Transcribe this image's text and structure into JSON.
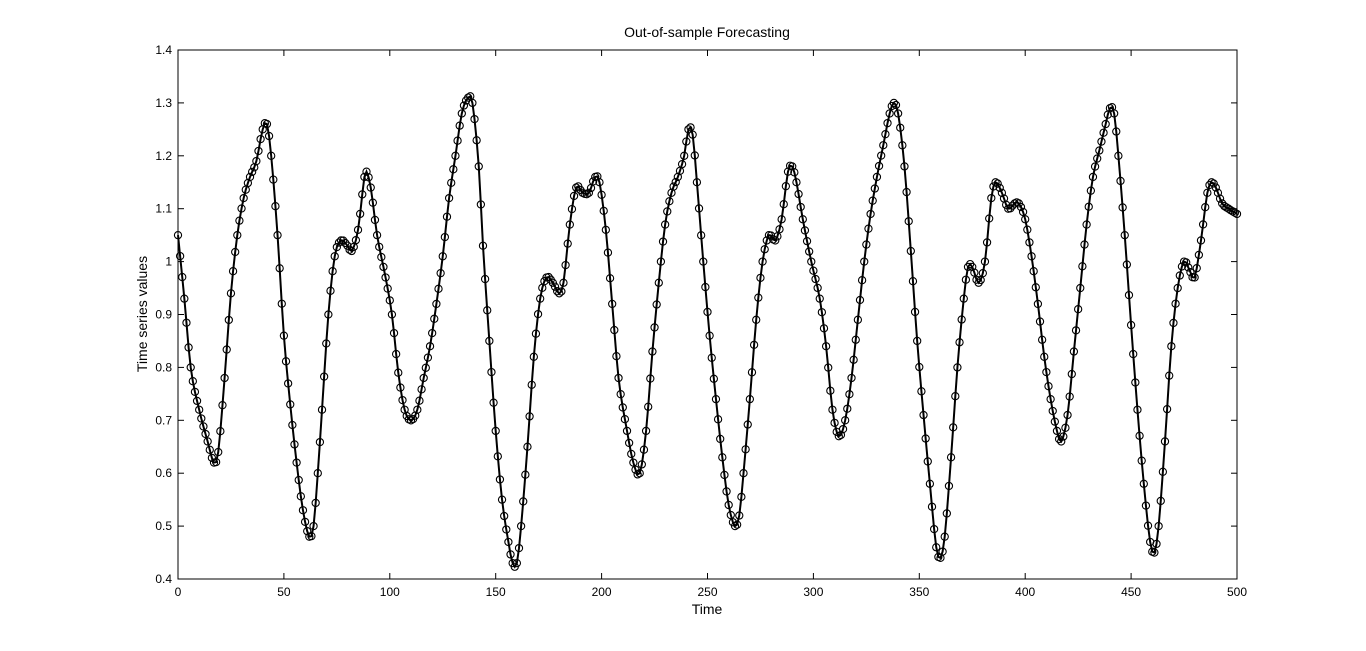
{
  "chart_data": {
    "type": "line",
    "title": "Out-of-sample Forecasting",
    "xlabel": "Time",
    "ylabel": "Time series values",
    "xlim": [
      0,
      500
    ],
    "ylim": [
      0.4,
      1.4
    ],
    "xticks": [
      0,
      50,
      100,
      150,
      200,
      250,
      300,
      350,
      400,
      450,
      500
    ],
    "yticks": [
      0.4,
      0.5,
      0.6,
      0.7,
      0.8,
      0.9,
      1,
      1.1,
      1.2,
      1.3,
      1.4
    ],
    "xtick_labels": [
      "0",
      "50",
      "100",
      "150",
      "200",
      "250",
      "300",
      "350",
      "400",
      "450",
      "500"
    ],
    "ytick_labels": [
      "0.4",
      "0.5",
      "0.6",
      "0.7",
      "0.8",
      "0.9",
      "1",
      "1.1",
      "1.2",
      "1.3",
      "1.4"
    ],
    "grid": false,
    "legend": null,
    "marker": "circle",
    "series_color": "#000000",
    "keypoints": [
      [
        0,
        1.05
      ],
      [
        3,
        0.93
      ],
      [
        6,
        0.8
      ],
      [
        10,
        0.72
      ],
      [
        14,
        0.66
      ],
      [
        17,
        0.62
      ],
      [
        19,
        0.64
      ],
      [
        22,
        0.78
      ],
      [
        25,
        0.94
      ],
      [
        28,
        1.05
      ],
      [
        31,
        1.12
      ],
      [
        34,
        1.16
      ],
      [
        37,
        1.19
      ],
      [
        40,
        1.25
      ],
      [
        42,
        1.26
      ],
      [
        44,
        1.2
      ],
      [
        47,
        1.05
      ],
      [
        50,
        0.86
      ],
      [
        53,
        0.73
      ],
      [
        56,
        0.62
      ],
      [
        59,
        0.53
      ],
      [
        62,
        0.48
      ],
      [
        64,
        0.5
      ],
      [
        66,
        0.6
      ],
      [
        68,
        0.72
      ],
      [
        71,
        0.9
      ],
      [
        74,
        1.01
      ],
      [
        77,
        1.04
      ],
      [
        80,
        1.03
      ],
      [
        82,
        1.02
      ],
      [
        85,
        1.06
      ],
      [
        88,
        1.16
      ],
      [
        89,
        1.17
      ],
      [
        91,
        1.14
      ],
      [
        94,
        1.05
      ],
      [
        98,
        0.97
      ],
      [
        101,
        0.9
      ],
      [
        104,
        0.79
      ],
      [
        107,
        0.72
      ],
      [
        110,
        0.7
      ],
      [
        113,
        0.72
      ],
      [
        116,
        0.78
      ],
      [
        119,
        0.84
      ],
      [
        122,
        0.92
      ],
      [
        125,
        1.01
      ],
      [
        128,
        1.12
      ],
      [
        131,
        1.2
      ],
      [
        134,
        1.28
      ],
      [
        137,
        1.31
      ],
      [
        139,
        1.3
      ],
      [
        142,
        1.18
      ],
      [
        144,
        1.03
      ],
      [
        147,
        0.85
      ],
      [
        150,
        0.68
      ],
      [
        153,
        0.55
      ],
      [
        156,
        0.47
      ],
      [
        158,
        0.43
      ],
      [
        160,
        0.43
      ],
      [
        162,
        0.5
      ],
      [
        165,
        0.65
      ],
      [
        168,
        0.82
      ],
      [
        171,
        0.93
      ],
      [
        174,
        0.97
      ],
      [
        177,
        0.96
      ],
      [
        180,
        0.94
      ],
      [
        182,
        0.96
      ],
      [
        185,
        1.07
      ],
      [
        188,
        1.14
      ],
      [
        191,
        1.13
      ],
      [
        194,
        1.13
      ],
      [
        197,
        1.16
      ],
      [
        199,
        1.15
      ],
      [
        202,
        1.06
      ],
      [
        205,
        0.92
      ],
      [
        208,
        0.78
      ],
      [
        212,
        0.68
      ],
      [
        215,
        0.62
      ],
      [
        218,
        0.6
      ],
      [
        221,
        0.68
      ],
      [
        224,
        0.83
      ],
      [
        227,
        0.96
      ],
      [
        230,
        1.07
      ],
      [
        233,
        1.13
      ],
      [
        236,
        1.16
      ],
      [
        239,
        1.2
      ],
      [
        241,
        1.25
      ],
      [
        243,
        1.24
      ],
      [
        245,
        1.15
      ],
      [
        248,
        1.0
      ],
      [
        251,
        0.86
      ],
      [
        254,
        0.74
      ],
      [
        257,
        0.63
      ],
      [
        260,
        0.54
      ],
      [
        263,
        0.5
      ],
      [
        265,
        0.52
      ],
      [
        267,
        0.6
      ],
      [
        270,
        0.74
      ],
      [
        273,
        0.89
      ],
      [
        276,
        1.0
      ],
      [
        279,
        1.05
      ],
      [
        282,
        1.04
      ],
      [
        285,
        1.08
      ],
      [
        288,
        1.17
      ],
      [
        290,
        1.18
      ],
      [
        292,
        1.15
      ],
      [
        295,
        1.08
      ],
      [
        299,
        1.0
      ],
      [
        303,
        0.93
      ],
      [
        306,
        0.84
      ],
      [
        309,
        0.72
      ],
      [
        312,
        0.67
      ],
      [
        315,
        0.7
      ],
      [
        318,
        0.78
      ],
      [
        321,
        0.89
      ],
      [
        324,
        1.0
      ],
      [
        327,
        1.09
      ],
      [
        330,
        1.16
      ],
      [
        333,
        1.22
      ],
      [
        336,
        1.28
      ],
      [
        338,
        1.3
      ],
      [
        340,
        1.28
      ],
      [
        343,
        1.18
      ],
      [
        346,
        1.02
      ],
      [
        349,
        0.85
      ],
      [
        352,
        0.71
      ],
      [
        355,
        0.58
      ],
      [
        358,
        0.46
      ],
      [
        360,
        0.44
      ],
      [
        362,
        0.48
      ],
      [
        365,
        0.63
      ],
      [
        368,
        0.8
      ],
      [
        371,
        0.93
      ],
      [
        373,
        0.99
      ],
      [
        375,
        0.99
      ],
      [
        378,
        0.96
      ],
      [
        381,
        1.0
      ],
      [
        384,
        1.12
      ],
      [
        386,
        1.15
      ],
      [
        389,
        1.13
      ],
      [
        392,
        1.1
      ],
      [
        395,
        1.11
      ],
      [
        397,
        1.11
      ],
      [
        400,
        1.08
      ],
      [
        403,
        1.01
      ],
      [
        406,
        0.92
      ],
      [
        409,
        0.82
      ],
      [
        412,
        0.74
      ],
      [
        415,
        0.68
      ],
      [
        417,
        0.66
      ],
      [
        420,
        0.71
      ],
      [
        423,
        0.83
      ],
      [
        426,
        0.95
      ],
      [
        429,
        1.07
      ],
      [
        432,
        1.16
      ],
      [
        435,
        1.21
      ],
      [
        438,
        1.26
      ],
      [
        440,
        1.29
      ],
      [
        442,
        1.28
      ],
      [
        444,
        1.2
      ],
      [
        447,
        1.05
      ],
      [
        450,
        0.88
      ],
      [
        453,
        0.72
      ],
      [
        456,
        0.58
      ],
      [
        459,
        0.47
      ],
      [
        461,
        0.45
      ],
      [
        463,
        0.5
      ],
      [
        466,
        0.66
      ],
      [
        469,
        0.84
      ],
      [
        472,
        0.95
      ],
      [
        475,
        1.0
      ],
      [
        478,
        0.98
      ],
      [
        480,
        0.97
      ],
      [
        483,
        1.04
      ],
      [
        486,
        1.13
      ],
      [
        488,
        1.15
      ],
      [
        490,
        1.14
      ],
      [
        493,
        1.11
      ],
      [
        496,
        1.1
      ],
      [
        500,
        1.09
      ]
    ]
  }
}
